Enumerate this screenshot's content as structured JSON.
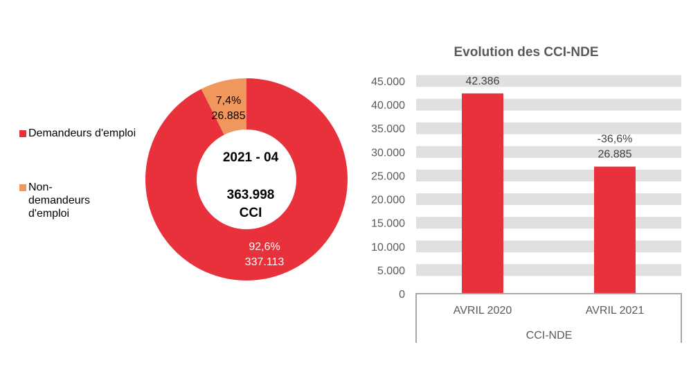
{
  "colors": {
    "demandeurs": "#e8313a",
    "non_demandeurs": "#f0975e",
    "bar": "#e8313a",
    "band": "#e0e0e0",
    "axis_text": "#595959"
  },
  "chart_data": [
    {
      "type": "pie",
      "donut": true,
      "center_label": {
        "period": "2021 - 04",
        "total": "363.998",
        "unit": "CCI"
      },
      "legend_position": "left",
      "slices": [
        {
          "name": "Demandeurs d'emploi",
          "value": 337113,
          "value_label": "337.113",
          "percent_label": "92,6%"
        },
        {
          "name": "Non-demandeurs d'emploi",
          "value": 26885,
          "value_label": "26.885",
          "percent_label": "7,4%"
        }
      ]
    },
    {
      "type": "bar",
      "title": "Evolution des CCI-NDE",
      "categories": [
        "AVRIL 2020",
        "AVRIL 2021"
      ],
      "group_label": "CCI-NDE",
      "values": [
        42386,
        26885
      ],
      "data_labels": [
        [
          "42.386"
        ],
        [
          "-36,6%",
          "26.885"
        ]
      ],
      "ylim": [
        0,
        45000
      ],
      "yticks": [
        "0",
        "5.000",
        "10.000",
        "15.000",
        "20.000",
        "25.000",
        "30.000",
        "35.000",
        "40.000",
        "45.000"
      ],
      "grid": true,
      "legend": false
    }
  ]
}
